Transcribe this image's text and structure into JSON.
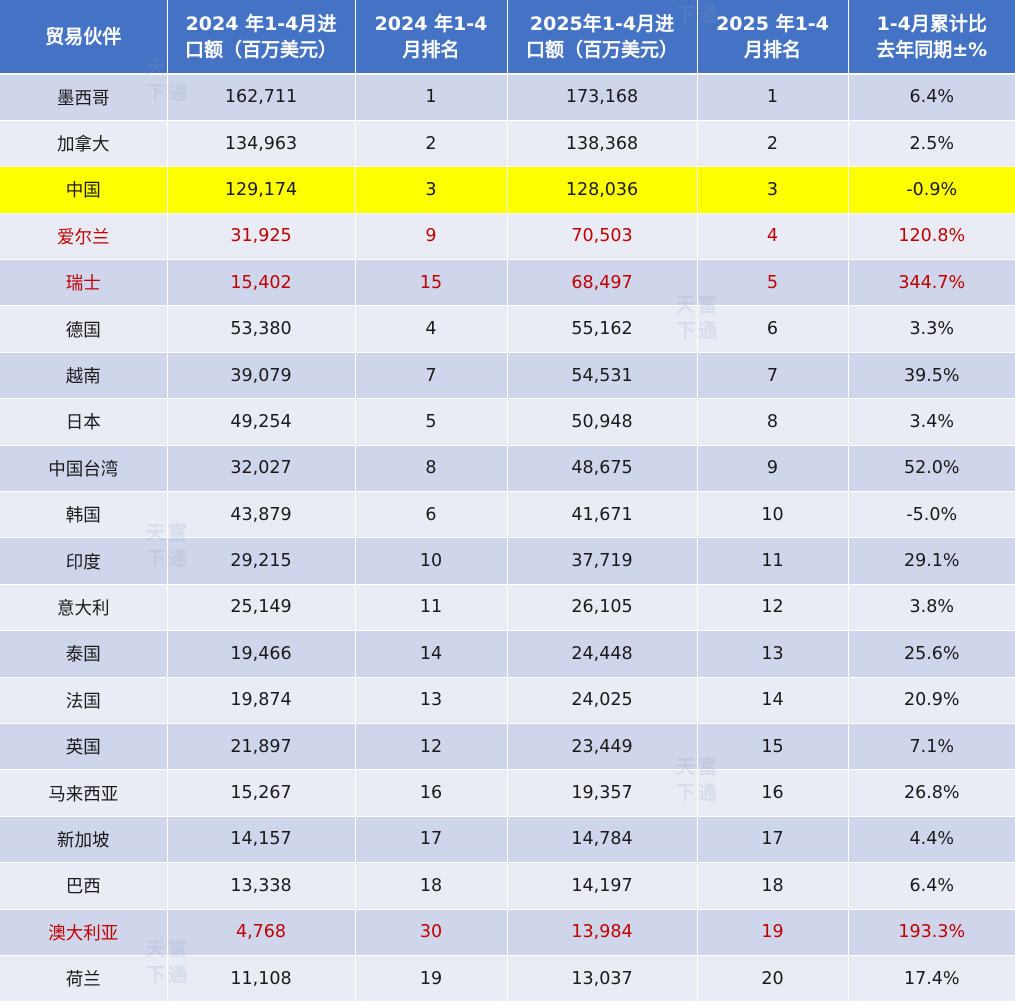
{
  "headers": [
    "贸易伙伴",
    "2024 年1-4月进\n口额（百万美元）",
    "2024 年1-4\n月排名",
    "2025年1-4月进\n口额（百万美元）",
    "2025 年1-4\n月排名",
    "1-4月累计比\n去年同期±%"
  ],
  "rows": [
    {
      "partner": "墨西哥",
      "imp2024": "162,711",
      "rank2024": "1",
      "imp2025": "173,168",
      "rank2025": "1",
      "yoy": "6.4%",
      "style": "normal"
    },
    {
      "partner": "加拿大",
      "imp2024": "134,963",
      "rank2024": "2",
      "imp2025": "138,368",
      "rank2025": "2",
      "yoy": "2.5%",
      "style": "normal"
    },
    {
      "partner": "中国",
      "imp2024": "129,174",
      "rank2024": "3",
      "imp2025": "128,036",
      "rank2025": "3",
      "yoy": "-0.9%",
      "style": "highlight"
    },
    {
      "partner": "爱尔兰",
      "imp2024": "31,925",
      "rank2024": "9",
      "imp2025": "70,503",
      "rank2025": "4",
      "yoy": "120.8%",
      "style": "red"
    },
    {
      "partner": "瑞士",
      "imp2024": "15,402",
      "rank2024": "15",
      "imp2025": "68,497",
      "rank2025": "5",
      "yoy": "344.7%",
      "style": "red"
    },
    {
      "partner": "德国",
      "imp2024": "53,380",
      "rank2024": "4",
      "imp2025": "55,162",
      "rank2025": "6",
      "yoy": "3.3%",
      "style": "normal"
    },
    {
      "partner": "越南",
      "imp2024": "39,079",
      "rank2024": "7",
      "imp2025": "54,531",
      "rank2025": "7",
      "yoy": "39.5%",
      "style": "normal"
    },
    {
      "partner": "日本",
      "imp2024": "49,254",
      "rank2024": "5",
      "imp2025": "50,948",
      "rank2025": "8",
      "yoy": "3.4%",
      "style": "normal"
    },
    {
      "partner": "中国台湾",
      "imp2024": "32,027",
      "rank2024": "8",
      "imp2025": "48,675",
      "rank2025": "9",
      "yoy": "52.0%",
      "style": "normal"
    },
    {
      "partner": "韩国",
      "imp2024": "43,879",
      "rank2024": "6",
      "imp2025": "41,671",
      "rank2025": "10",
      "yoy": "-5.0%",
      "style": "normal"
    },
    {
      "partner": "印度",
      "imp2024": "29,215",
      "rank2024": "10",
      "imp2025": "37,719",
      "rank2025": "11",
      "yoy": "29.1%",
      "style": "normal"
    },
    {
      "partner": "意大利",
      "imp2024": "25,149",
      "rank2024": "11",
      "imp2025": "26,105",
      "rank2025": "12",
      "yoy": "3.8%",
      "style": "normal"
    },
    {
      "partner": "泰国",
      "imp2024": "19,466",
      "rank2024": "14",
      "imp2025": "24,448",
      "rank2025": "13",
      "yoy": "25.6%",
      "style": "normal"
    },
    {
      "partner": "法国",
      "imp2024": "19,874",
      "rank2024": "13",
      "imp2025": "24,025",
      "rank2025": "14",
      "yoy": "20.9%",
      "style": "normal"
    },
    {
      "partner": "英国",
      "imp2024": "21,897",
      "rank2024": "12",
      "imp2025": "23,449",
      "rank2025": "15",
      "yoy": "7.1%",
      "style": "normal"
    },
    {
      "partner": "马来西亚",
      "imp2024": "15,267",
      "rank2024": "16",
      "imp2025": "19,357",
      "rank2025": "16",
      "yoy": "26.8%",
      "style": "normal"
    },
    {
      "partner": "新加坡",
      "imp2024": "14,157",
      "rank2024": "17",
      "imp2025": "14,784",
      "rank2025": "17",
      "yoy": "4.4%",
      "style": "normal"
    },
    {
      "partner": "巴西",
      "imp2024": "13,338",
      "rank2024": "18",
      "imp2025": "14,197",
      "rank2025": "18",
      "yoy": "6.4%",
      "style": "normal"
    },
    {
      "partner": "澳大利亚",
      "imp2024": "4,768",
      "rank2024": "30",
      "imp2025": "13,984",
      "rank2025": "19",
      "yoy": "193.3%",
      "style": "red"
    },
    {
      "partner": "荷兰",
      "imp2024": "11,108",
      "rank2024": "19",
      "imp2025": "13,037",
      "rank2025": "20",
      "yoy": "17.4%",
      "style": "normal"
    }
  ],
  "watermark": {
    "chars": [
      "天",
      "富",
      "下",
      "通"
    ]
  },
  "colors": {
    "header_bg": "#4472c4",
    "row_dark": "#cfd5ea",
    "row_light": "#e9ebf5",
    "highlight": "#ffff00",
    "red_text": "#c00000"
  }
}
